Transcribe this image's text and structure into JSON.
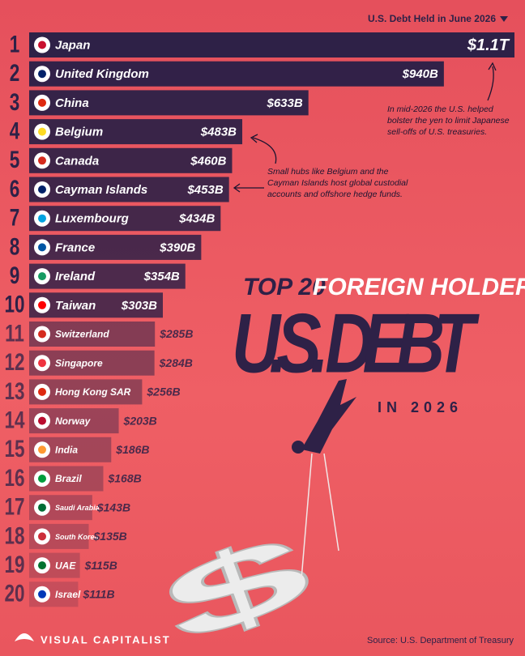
{
  "chart_data": {
    "type": "bar",
    "header": "U.S. Debt Held in June 2026",
    "title_top": "TOP 20",
    "title_mid": "FOREIGN HOLDERS OF",
    "title_main": "U.S. DEBT",
    "title_sub": "IN 2026",
    "annotations": [
      "In mid-2026 the U.S. helped bolster the yen to limit Japanese sell-offs of U.S. treasuries.",
      "Small hubs like Belgium and the Cayman Islands host global custodial accounts and offshore hedge funds."
    ],
    "source": "Source: U.S. Department of Treasury",
    "brand": "VISUAL CAPITALIST",
    "ranks": [
      1,
      2,
      3,
      4,
      5,
      6,
      7,
      8,
      9,
      10,
      11,
      12,
      13,
      14,
      15,
      16,
      17,
      18,
      19,
      20
    ],
    "categories": [
      "Japan",
      "United Kingdom",
      "China",
      "Belgium",
      "Canada",
      "Cayman Islands",
      "Luxembourg",
      "France",
      "Ireland",
      "Taiwan",
      "Switzerland",
      "Singapore",
      "Hong Kong SAR",
      "Norway",
      "India",
      "Brazil",
      "Saudi Arabia",
      "South Korea",
      "UAE",
      "Israel"
    ],
    "values": [
      1100,
      940,
      633,
      483,
      460,
      453,
      434,
      390,
      354,
      303,
      285,
      284,
      256,
      203,
      186,
      168,
      143,
      135,
      115,
      111
    ],
    "value_labels": [
      "$1.1T",
      "$940B",
      "$633B",
      "$483B",
      "$460B",
      "$453B",
      "$434B",
      "$390B",
      "$354B",
      "$303B",
      "$285B",
      "$284B",
      "$256B",
      "$203B",
      "$186B",
      "$168B",
      "$143B",
      "$135B",
      "$115B",
      "$111B"
    ],
    "color": "#2e2147"
  }
}
